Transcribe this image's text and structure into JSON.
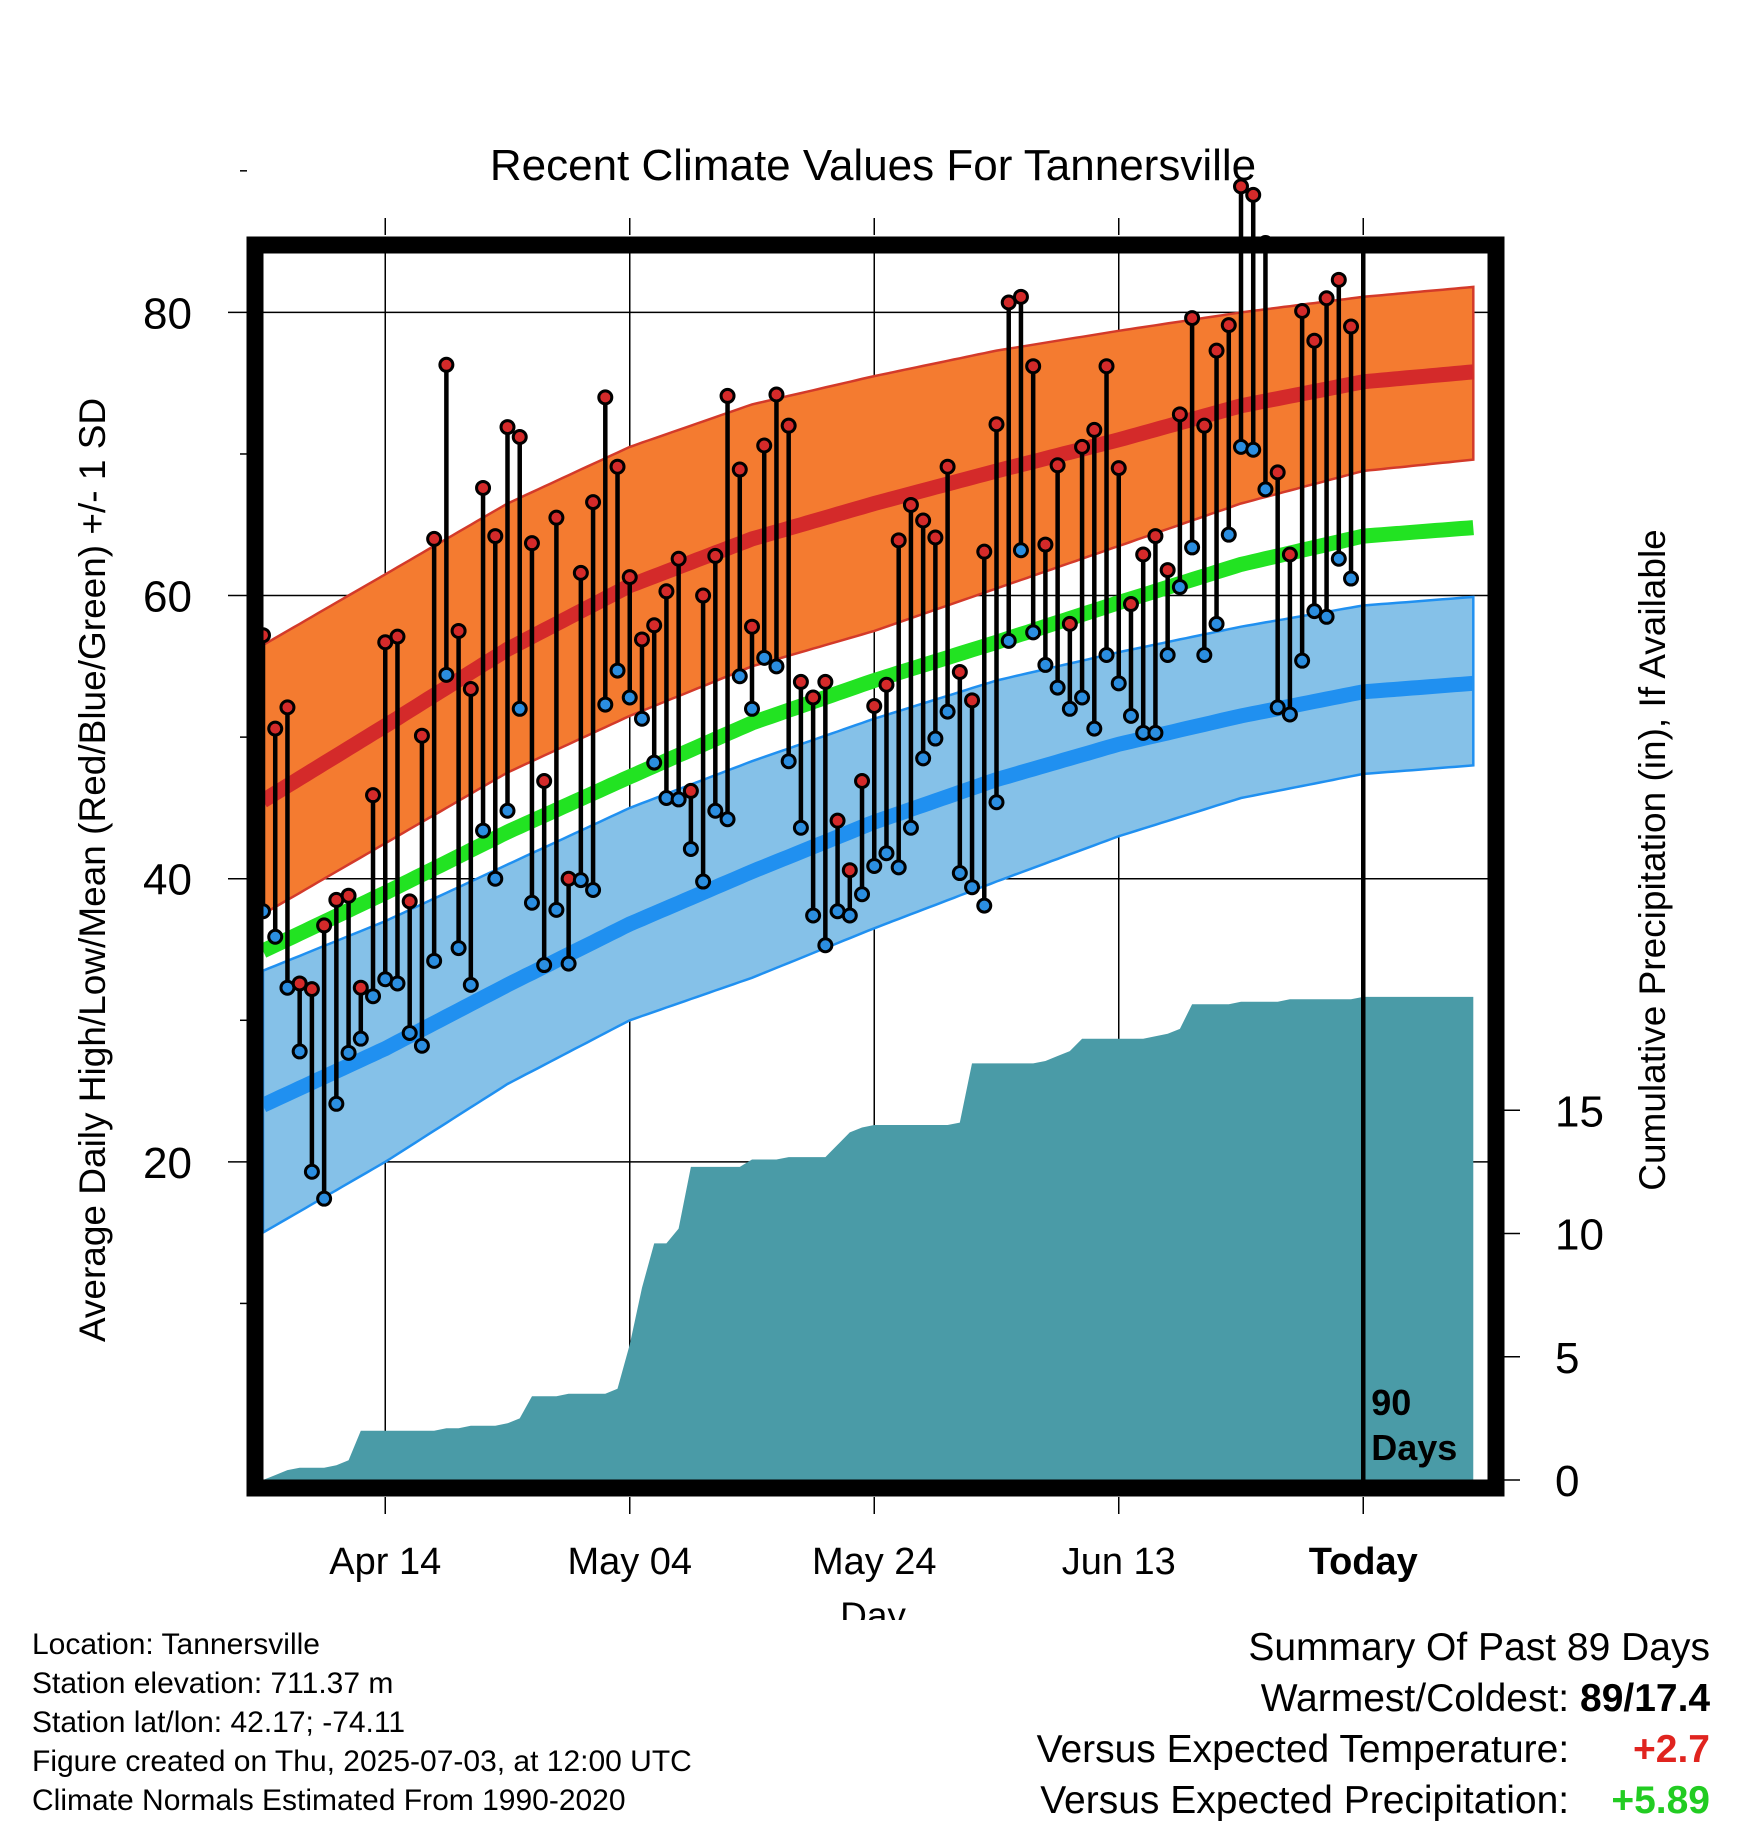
{
  "chart_data": {
    "type": "line",
    "title": "Recent Climate Values For Tannersville",
    "xlabel": "Day",
    "ylabel_left": "Average Daily High/Low/Mean (Red/Blue/Green) +/- 1 SD",
    "ylabel_right": "Cumulative Precipitation (in), If Available",
    "left_axis": {
      "ylim": [
        7,
        95
      ],
      "major_ticks": [
        20,
        40,
        60,
        80
      ]
    },
    "right_axis": {
      "major_ticks": [
        0,
        5,
        10,
        15
      ]
    },
    "x_tick_labels": [
      {
        "day": 10,
        "label": "Apr 14"
      },
      {
        "day": 30,
        "label": "May 04"
      },
      {
        "day": 50,
        "label": "May 24"
      },
      {
        "day": 70,
        "label": "Jun 13"
      },
      {
        "day": 90,
        "label": "Today"
      }
    ],
    "today_marker": {
      "day": 90,
      "label_line1": "90",
      "label_line2": "Days"
    },
    "normals": {
      "high_mean": [
        [
          0,
          45.5
        ],
        [
          10,
          50.8
        ],
        [
          20,
          56.2
        ],
        [
          30,
          60.7
        ],
        [
          40,
          64.0
        ],
        [
          50,
          66.5
        ],
        [
          60,
          68.8
        ],
        [
          70,
          71.0
        ],
        [
          80,
          73.4
        ],
        [
          90,
          75.1
        ],
        [
          99,
          75.8
        ]
      ],
      "high_upper": [
        [
          0,
          56.5
        ],
        [
          10,
          61.5
        ],
        [
          20,
          66.5
        ],
        [
          30,
          70.5
        ],
        [
          40,
          73.5
        ],
        [
          50,
          75.5
        ],
        [
          60,
          77.3
        ],
        [
          70,
          78.7
        ],
        [
          80,
          80.0
        ],
        [
          90,
          81.1
        ],
        [
          99,
          81.8
        ]
      ],
      "high_lower": [
        [
          0,
          37.5
        ],
        [
          10,
          42.5
        ],
        [
          20,
          47.5
        ],
        [
          30,
          51.5
        ],
        [
          40,
          55.0
        ],
        [
          50,
          57.5
        ],
        [
          60,
          60.5
        ],
        [
          70,
          63.5
        ],
        [
          80,
          66.5
        ],
        [
          90,
          68.8
        ],
        [
          99,
          69.6
        ]
      ],
      "mean": [
        [
          0,
          34.9
        ],
        [
          10,
          39.0
        ],
        [
          20,
          43.3
        ],
        [
          30,
          47.2
        ],
        [
          40,
          51.0
        ],
        [
          50,
          54.0
        ],
        [
          60,
          56.7
        ],
        [
          70,
          59.5
        ],
        [
          80,
          62.2
        ],
        [
          90,
          64.2
        ],
        [
          99,
          64.8
        ]
      ],
      "low_mean": [
        [
          0,
          24.0
        ],
        [
          10,
          28.0
        ],
        [
          20,
          32.5
        ],
        [
          30,
          36.8
        ],
        [
          40,
          40.5
        ],
        [
          50,
          44.0
        ],
        [
          60,
          47.0
        ],
        [
          70,
          49.5
        ],
        [
          80,
          51.5
        ],
        [
          90,
          53.2
        ],
        [
          99,
          53.8
        ]
      ],
      "low_upper": [
        [
          0,
          33.5
        ],
        [
          10,
          37.0
        ],
        [
          20,
          41.0
        ],
        [
          30,
          45.0
        ],
        [
          40,
          48.3
        ],
        [
          50,
          51.3
        ],
        [
          60,
          54.0
        ],
        [
          70,
          56.0
        ],
        [
          80,
          57.8
        ],
        [
          90,
          59.3
        ],
        [
          99,
          59.9
        ]
      ],
      "low_lower": [
        [
          0,
          15.0
        ],
        [
          10,
          20.0
        ],
        [
          20,
          25.5
        ],
        [
          30,
          30.0
        ],
        [
          40,
          33.0
        ],
        [
          50,
          36.5
        ],
        [
          60,
          39.8
        ],
        [
          70,
          43.0
        ],
        [
          80,
          45.7
        ],
        [
          90,
          47.4
        ],
        [
          99,
          48.0
        ]
      ]
    },
    "daily": {
      "high": [
        57.2,
        50.6,
        52.1,
        32.6,
        32.2,
        36.7,
        38.5,
        38.8,
        32.3,
        45.9,
        56.7,
        57.1,
        38.4,
        50.1,
        64.0,
        76.3,
        57.5,
        53.4,
        67.6,
        64.2,
        71.9,
        71.2,
        63.7,
        46.9,
        65.5,
        40.0,
        61.6,
        66.6,
        74.0,
        69.1,
        61.3,
        56.9,
        57.9,
        60.3,
        62.6,
        46.2,
        60.0,
        62.8,
        74.1,
        68.9,
        57.8,
        70.6,
        74.2,
        72.0,
        53.9,
        52.8,
        53.9,
        44.1,
        40.6,
        46.9,
        52.2,
        53.7,
        63.9,
        66.4,
        65.3,
        64.1,
        69.1,
        54.6,
        52.6,
        63.1,
        72.1,
        80.7,
        81.1,
        76.2,
        63.6,
        69.2,
        58.0,
        70.5,
        71.7,
        76.2,
        69.0,
        59.4,
        62.9,
        64.2,
        61.8,
        72.8,
        79.6,
        72.0,
        77.3,
        79.1,
        88.9,
        88.3,
        84.9,
        68.7,
        62.9,
        80.1,
        78.0,
        81.0,
        82.3,
        79.0
      ],
      "low": [
        37.7,
        35.9,
        32.3,
        27.8,
        19.3,
        17.4,
        24.1,
        27.7,
        28.7,
        31.7,
        32.9,
        32.6,
        29.1,
        28.2,
        34.2,
        54.4,
        35.1,
        32.5,
        43.4,
        40.0,
        44.8,
        52.0,
        38.3,
        33.9,
        37.8,
        34.0,
        39.9,
        39.2,
        52.3,
        54.7,
        52.8,
        51.3,
        48.2,
        45.7,
        45.6,
        42.1,
        39.8,
        44.8,
        44.2,
        54.3,
        52.0,
        55.6,
        55.0,
        48.3,
        43.6,
        37.4,
        35.3,
        37.7,
        37.4,
        38.9,
        40.9,
        41.8,
        40.8,
        43.6,
        48.5,
        49.9,
        51.8,
        40.4,
        39.4,
        38.1,
        45.4,
        56.8,
        63.2,
        57.4,
        55.1,
        53.5,
        52.0,
        52.8,
        50.6,
        55.8,
        53.8,
        51.5,
        50.3,
        50.3,
        55.8,
        60.6,
        63.4,
        55.8,
        58.0,
        64.3,
        70.5,
        70.3,
        67.5,
        52.1,
        51.6,
        55.4,
        58.9,
        58.5,
        62.6,
        61.2
      ]
    },
    "cumulative_precip_in": [
      [
        0,
        0.0
      ],
      [
        1,
        0.2
      ],
      [
        2,
        0.4
      ],
      [
        3,
        0.5
      ],
      [
        4,
        0.5
      ],
      [
        5,
        0.5
      ],
      [
        6,
        0.6
      ],
      [
        7,
        0.8
      ],
      [
        8,
        2.0
      ],
      [
        9,
        2.0
      ],
      [
        10,
        2.0
      ],
      [
        11,
        2.0
      ],
      [
        12,
        2.0
      ],
      [
        13,
        2.0
      ],
      [
        14,
        2.0
      ],
      [
        15,
        2.1
      ],
      [
        16,
        2.1
      ],
      [
        17,
        2.2
      ],
      [
        18,
        2.2
      ],
      [
        19,
        2.2
      ],
      [
        20,
        2.3
      ],
      [
        21,
        2.5
      ],
      [
        22,
        3.4
      ],
      [
        23,
        3.4
      ],
      [
        24,
        3.4
      ],
      [
        25,
        3.5
      ],
      [
        26,
        3.5
      ],
      [
        27,
        3.5
      ],
      [
        28,
        3.5
      ],
      [
        29,
        3.7
      ],
      [
        30,
        5.5
      ],
      [
        31,
        7.8
      ],
      [
        32,
        9.6
      ],
      [
        33,
        9.6
      ],
      [
        34,
        10.2
      ],
      [
        35,
        12.7
      ],
      [
        36,
        12.7
      ],
      [
        37,
        12.7
      ],
      [
        38,
        12.7
      ],
      [
        39,
        12.7
      ],
      [
        40,
        13.0
      ],
      [
        41,
        13.0
      ],
      [
        42,
        13.0
      ],
      [
        43,
        13.1
      ],
      [
        44,
        13.1
      ],
      [
        45,
        13.1
      ],
      [
        46,
        13.1
      ],
      [
        47,
        13.6
      ],
      [
        48,
        14.1
      ],
      [
        49,
        14.3
      ],
      [
        50,
        14.4
      ],
      [
        51,
        14.4
      ],
      [
        52,
        14.4
      ],
      [
        53,
        14.4
      ],
      [
        54,
        14.4
      ],
      [
        55,
        14.4
      ],
      [
        56,
        14.4
      ],
      [
        57,
        14.5
      ],
      [
        58,
        16.9
      ],
      [
        59,
        16.9
      ],
      [
        60,
        16.9
      ],
      [
        61,
        16.9
      ],
      [
        62,
        16.9
      ],
      [
        63,
        16.9
      ],
      [
        64,
        17.0
      ],
      [
        65,
        17.2
      ],
      [
        66,
        17.4
      ],
      [
        67,
        17.9
      ],
      [
        68,
        17.9
      ],
      [
        69,
        17.9
      ],
      [
        70,
        17.9
      ],
      [
        71,
        17.9
      ],
      [
        72,
        17.9
      ],
      [
        73,
        18.0
      ],
      [
        74,
        18.1
      ],
      [
        75,
        18.3
      ],
      [
        76,
        19.3
      ],
      [
        77,
        19.3
      ],
      [
        78,
        19.3
      ],
      [
        79,
        19.3
      ],
      [
        80,
        19.4
      ],
      [
        81,
        19.4
      ],
      [
        82,
        19.4
      ],
      [
        83,
        19.4
      ],
      [
        84,
        19.5
      ],
      [
        85,
        19.5
      ],
      [
        86,
        19.5
      ],
      [
        87,
        19.5
      ],
      [
        88,
        19.5
      ],
      [
        89,
        19.5
      ],
      [
        90,
        19.6
      ],
      [
        91,
        19.6
      ],
      [
        92,
        19.6
      ],
      [
        93,
        19.6
      ],
      [
        94,
        19.6
      ],
      [
        95,
        19.6
      ],
      [
        96,
        19.6
      ],
      [
        97,
        19.6
      ],
      [
        98,
        19.6
      ],
      [
        99,
        19.6
      ]
    ],
    "colors": {
      "high_band": "#f47b30",
      "high_line": "#d42a2a",
      "low_band": "#85c1e8",
      "low_line": "#2090f0",
      "mean_line": "#22e322",
      "precip_fill": "#4a9ba7",
      "high_marker": "#d42a2a",
      "low_marker": "#2b8ee0"
    }
  },
  "info": {
    "location": "Location: Tannersville",
    "elevation": "Station elevation: 711.37 m",
    "latlon": "Station lat/lon: 42.17; -74.11",
    "created": "Figure created on Thu, 2025-07-03, at 12:00 UTC",
    "normals": "Climate Normals Estimated From 1990-2020"
  },
  "summary": {
    "title": "Summary Of Past 89 Days",
    "warm_label": "Warmest/Coldest:",
    "warm_value": "89/17.4",
    "temp_label": "Versus Expected Temperature:",
    "temp_value": "+2.7",
    "temp_color": "#e0241f",
    "precip_label": "Versus Expected Precipitation:",
    "precip_value": "+5.89",
    "precip_color": "#22cc22"
  }
}
